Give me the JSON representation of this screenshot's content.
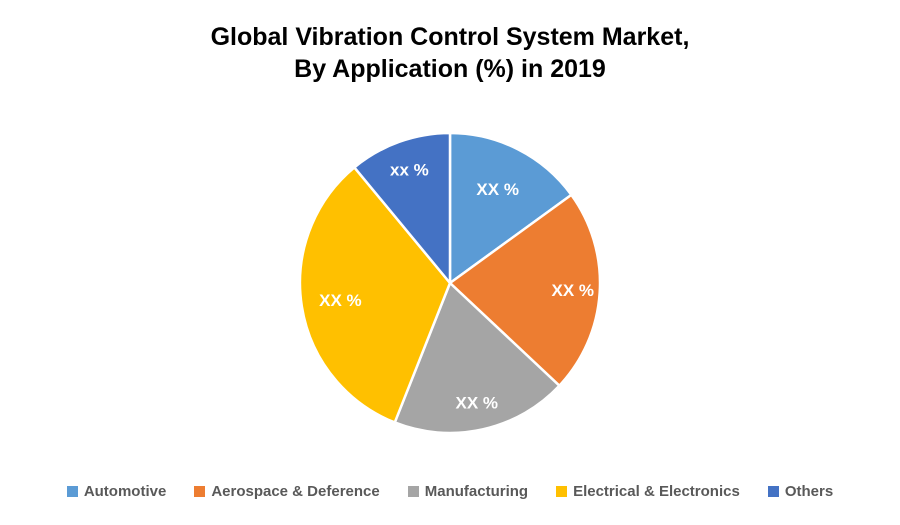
{
  "title": {
    "line1": "Global Vibration Control System Market,",
    "line2": "By Application (%) in 2019"
  },
  "chart_data": {
    "type": "pie",
    "title": "Global Vibration Control System Market, By Application (%) in 2019",
    "unit": "%",
    "start_angle_deg": 0,
    "direction": "clockwise",
    "legend_position": "bottom",
    "slices": [
      {
        "label": "Automotive",
        "display_value": "XX %",
        "value_pct_est": 15,
        "color": "#5B9BD5"
      },
      {
        "label": "Aerospace & Deference",
        "display_value": "XX %",
        "value_pct_est": 22,
        "color": "#ED7D31"
      },
      {
        "label": "Manufacturing",
        "display_value": "XX %",
        "value_pct_est": 19,
        "color": "#A5A5A5"
      },
      {
        "label": "Electrical & Electronics",
        "display_value": "XX %",
        "value_pct_est": 33,
        "color": "#FFC000"
      },
      {
        "label": "Others",
        "display_value": "xx %",
        "value_pct_est": 11,
        "color": "#4472C4"
      }
    ],
    "note": "Slice values are masked as 'XX %' / 'xx %' in the source chart; value_pct_est estimated from arc angles",
    "label_radius_factors": [
      0.7,
      0.82,
      0.82,
      0.74,
      0.8
    ]
  },
  "legend": {
    "items": [
      {
        "label": "Automotive",
        "color": "#5B9BD5"
      },
      {
        "label": "Aerospace & Deference",
        "color": "#ED7D31"
      },
      {
        "label": "Manufacturing",
        "color": "#A5A5A5"
      },
      {
        "label": "Electrical & Electronics",
        "color": "#FFC000"
      },
      {
        "label": "Others",
        "color": "#4472C4"
      }
    ]
  },
  "colors": {
    "background": "#FFFFFF",
    "title_text": "#000000",
    "legend_text": "#595959",
    "slice_label_text": "#FFFFFF",
    "slice_border": "#FFFFFF"
  }
}
